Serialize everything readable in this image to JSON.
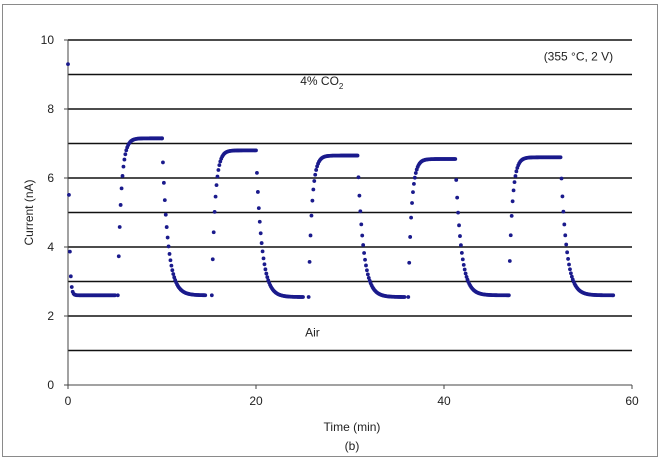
{
  "chart_data": {
    "type": "scatter",
    "xlabel": "Time (min)",
    "ylabel": "Current (nA)",
    "caption": "(b)",
    "xlim": [
      0,
      60
    ],
    "ylim": [
      0,
      10
    ],
    "xticks": [
      0,
      20,
      40,
      60
    ],
    "yticks": [
      0,
      2,
      4,
      6,
      8,
      10
    ],
    "gridlines_y": [
      1,
      2,
      3,
      4,
      5,
      6,
      7,
      8,
      9,
      10
    ],
    "grid": true,
    "marker_color": "#1a1a8c",
    "annotations": [
      {
        "text": "(355 °C, 2 V)",
        "x": 58,
        "y": 9.4,
        "anchor": "end"
      },
      {
        "text_main": "4% CO",
        "text_sub": "2",
        "x": 27,
        "y": 8.7,
        "anchor": "middle"
      },
      {
        "text": "Air",
        "x": 26,
        "y": 1.4,
        "anchor": "middle"
      }
    ],
    "cycles": [
      {
        "gas_on": 5.3,
        "peak": 7.15,
        "gas_off": 10.0,
        "base": 2.6,
        "on_end": 5.0,
        "off_end": 14.6
      },
      {
        "gas_on": 15.3,
        "peak": 6.8,
        "gas_off": 20.0,
        "base": 2.55,
        "on_end": 20.0,
        "off_end": 25.0
      },
      {
        "gas_on": 25.6,
        "peak": 6.65,
        "gas_off": 30.8,
        "base": 2.55,
        "on_end": 30.8,
        "off_end": 35.8
      },
      {
        "gas_on": 36.2,
        "peak": 6.55,
        "gas_off": 41.2,
        "base": 2.6,
        "on_end": 41.2,
        "off_end": 46.8
      },
      {
        "gas_on": 46.9,
        "peak": 6.6,
        "gas_off": 52.4,
        "base": 2.6,
        "on_end": 52.4,
        "off_end": 58.0
      }
    ],
    "initial": {
      "start_value": 9.3,
      "base": 2.6,
      "end": 5.0
    }
  }
}
